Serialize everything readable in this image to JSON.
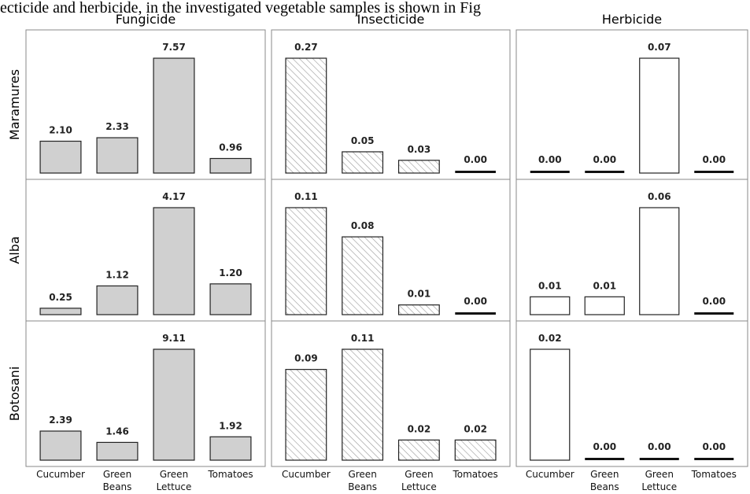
{
  "caption": "ecticide and herbicide, in the investigated vegetable samples is shown in Fig",
  "chart_data": {
    "type": "bar",
    "categories": [
      "Cucumber",
      "Green Beans",
      "Green Lettuce",
      "Tomatoes"
    ],
    "facet_columns": [
      {
        "name": "Fungicide",
        "color": "#d0d0d0",
        "hatch": false
      },
      {
        "name": "Insecticide",
        "color": "#ffffff",
        "hatch": true
      },
      {
        "name": "Herbicide",
        "color": "#ffffff",
        "hatch": false
      }
    ],
    "facet_rows": [
      "Maramures",
      "Alba",
      "Botosani"
    ],
    "panels": [
      [
        {
          "values": [
            2.1,
            2.33,
            7.57,
            0.96
          ],
          "value_labels": [
            "2.10",
            "2.33",
            "7.57",
            "0.96"
          ]
        },
        {
          "values": [
            0.27,
            0.05,
            0.03,
            0
          ],
          "value_labels": [
            "0.27",
            "0.05",
            "0.03",
            "0.00"
          ]
        },
        {
          "values": [
            0,
            0,
            0.07,
            0
          ],
          "value_labels": [
            "0.00",
            "0.00",
            "0.07",
            "0.00"
          ]
        }
      ],
      [
        {
          "values": [
            0.25,
            1.12,
            4.17,
            1.2
          ],
          "value_labels": [
            "0.25",
            "1.12",
            "4.17",
            "1.20"
          ]
        },
        {
          "values": [
            0.11,
            0.08,
            0.01,
            0
          ],
          "value_labels": [
            "0.11",
            "0.08",
            "0.01",
            "0.00"
          ]
        },
        {
          "values": [
            0.01,
            0.01,
            0.06,
            0
          ],
          "value_labels": [
            "0.01",
            "0.01",
            "0.06",
            "0.00"
          ]
        }
      ],
      [
        {
          "values": [
            2.39,
            1.46,
            9.11,
            1.92
          ],
          "value_labels": [
            "2.39",
            "1.46",
            "9.11",
            "1.92"
          ]
        },
        {
          "values": [
            0.09,
            0.11,
            0.02,
            0.02
          ],
          "value_labels": [
            "0.09",
            "0.11",
            "0.02",
            "0.02"
          ]
        },
        {
          "values": [
            0.02,
            0,
            0,
            0
          ],
          "value_labels": [
            "0.02",
            "0.00",
            "0.00",
            "0.00"
          ]
        }
      ]
    ]
  }
}
